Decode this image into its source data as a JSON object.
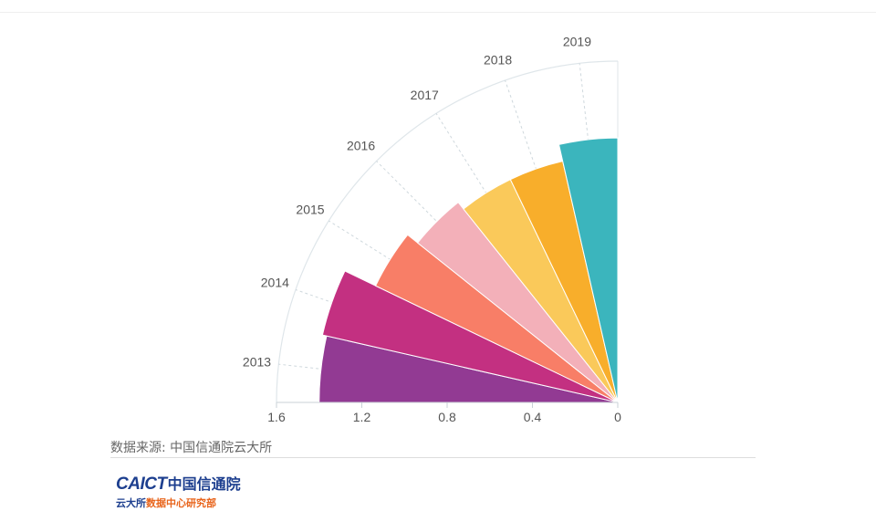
{
  "chart_data": {
    "type": "polar-bar",
    "categories": [
      "2013",
      "2014",
      "2015",
      "2016",
      "2017",
      "2018",
      "2019"
    ],
    "values": [
      1.4,
      1.42,
      1.26,
      1.2,
      1.16,
      1.16,
      1.24
    ],
    "colors": [
      "#923a93",
      "#c33081",
      "#f87e67",
      "#f3b0b9",
      "#fac95a",
      "#f8ae2b",
      "#3bb5bd"
    ],
    "radial_axis": {
      "ticks": [
        "1.6",
        "1.2",
        "0.8",
        "0.4",
        "0"
      ],
      "range": [
        0,
        1.6
      ]
    },
    "angular_span": "quarter-circle",
    "grid": true
  },
  "footer": {
    "source": "数据来源: 中国信通院云大所",
    "logo_caict": "CAICT",
    "logo_cn": "中国信通院",
    "logo_sub_a": "云大所",
    "logo_sub_b": "数据中心研究部"
  }
}
